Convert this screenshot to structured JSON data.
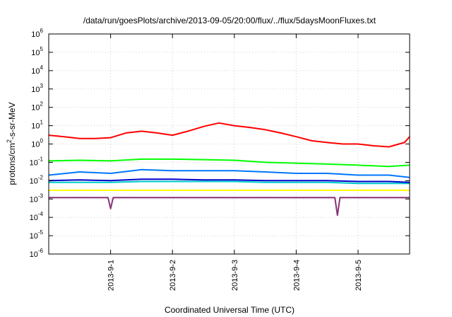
{
  "chart_data": {
    "type": "line",
    "title": "/data/run/goesPlots/archive/2013-09-05/20:00/flux/../flux/5daysMoonFluxes.txt",
    "xlabel": "Coordinated Universal Time (UTC)",
    "ylabel": {
      "base": "protons/cm",
      "sup": "2",
      "rest": "-s-sr-MeV"
    },
    "y_scale": "log",
    "ylim": [
      1e-06,
      1000000.0
    ],
    "y_ticks": [
      {
        "value": 1e-06,
        "base": "10",
        "exp": "-6"
      },
      {
        "value": 1e-05,
        "base": "10",
        "exp": "-5"
      },
      {
        "value": 0.0001,
        "base": "10",
        "exp": "-4"
      },
      {
        "value": 0.001,
        "base": "10",
        "exp": "-3"
      },
      {
        "value": 0.01,
        "base": "10",
        "exp": "-2"
      },
      {
        "value": 0.1,
        "base": "10",
        "exp": "-1"
      },
      {
        "value": 1.0,
        "base": "10",
        "exp": "0"
      },
      {
        "value": 10.0,
        "base": "10",
        "exp": "1"
      },
      {
        "value": 100.0,
        "base": "10",
        "exp": "2"
      },
      {
        "value": 1000.0,
        "base": "10",
        "exp": "3"
      },
      {
        "value": 10000.0,
        "base": "10",
        "exp": "4"
      },
      {
        "value": 100000.0,
        "base": "10",
        "exp": "5"
      },
      {
        "value": 1000000.0,
        "base": "10",
        "exp": "6"
      }
    ],
    "xlim": [
      "2013-08-31 00:00",
      "2013-09-05 20:00"
    ],
    "x_ticks": [
      "2013-9-1",
      "2013-9-2",
      "2013-9-3",
      "2013-9-4",
      "2013-9-5"
    ],
    "grid": true,
    "series": [
      {
        "color": "#ff0000",
        "x": [
          "2013-08-31 00:00",
          "2013-08-31 06:00",
          "2013-08-31 12:00",
          "2013-08-31 18:00",
          "2013-09-01 00:00",
          "2013-09-01 06:00",
          "2013-09-01 12:00",
          "2013-09-01 18:00",
          "2013-09-02 00:00",
          "2013-09-02 06:00",
          "2013-09-02 12:00",
          "2013-09-02 18:00",
          "2013-09-03 00:00",
          "2013-09-03 06:00",
          "2013-09-03 12:00",
          "2013-09-03 18:00",
          "2013-09-04 00:00",
          "2013-09-04 06:00",
          "2013-09-04 12:00",
          "2013-09-04 18:00",
          "2013-09-05 00:00",
          "2013-09-05 06:00",
          "2013-09-05 12:00",
          "2013-09-05 18:00",
          "2013-09-05 20:00"
        ],
        "values": [
          3,
          2.5,
          2,
          2,
          2.2,
          4,
          5,
          4,
          3,
          5,
          9,
          14,
          10,
          8,
          6,
          4,
          2.5,
          1.5,
          1.2,
          1,
          1,
          0.8,
          0.7,
          1.2,
          2.5
        ]
      },
      {
        "color": "#00ff00",
        "x": [
          "2013-08-31 00:00",
          "2013-08-31 12:00",
          "2013-09-01 00:00",
          "2013-09-01 12:00",
          "2013-09-02 00:00",
          "2013-09-02 12:00",
          "2013-09-03 00:00",
          "2013-09-03 12:00",
          "2013-09-04 00:00",
          "2013-09-04 12:00",
          "2013-09-05 00:00",
          "2013-09-05 12:00",
          "2013-09-05 20:00"
        ],
        "values": [
          0.12,
          0.13,
          0.12,
          0.15,
          0.15,
          0.14,
          0.13,
          0.1,
          0.09,
          0.08,
          0.07,
          0.06,
          0.07
        ]
      },
      {
        "color": "#0077ff",
        "x": [
          "2013-08-31 00:00",
          "2013-08-31 12:00",
          "2013-09-01 00:00",
          "2013-09-01 12:00",
          "2013-09-02 00:00",
          "2013-09-02 12:00",
          "2013-09-03 00:00",
          "2013-09-03 12:00",
          "2013-09-04 00:00",
          "2013-09-04 12:00",
          "2013-09-05 00:00",
          "2013-09-05 12:00",
          "2013-09-05 20:00"
        ],
        "values": [
          0.02,
          0.03,
          0.025,
          0.04,
          0.035,
          0.035,
          0.035,
          0.03,
          0.025,
          0.025,
          0.02,
          0.02,
          0.015
        ]
      },
      {
        "color": "#00cccc",
        "x": [
          "2013-08-31 00:00",
          "2013-08-31 12:00",
          "2013-09-01 00:00",
          "2013-09-01 12:00",
          "2013-09-02 00:00",
          "2013-09-02 12:00",
          "2013-09-03 00:00",
          "2013-09-03 12:00",
          "2013-09-04 00:00",
          "2013-09-04 12:00",
          "2013-09-05 00:00",
          "2013-09-05 12:00",
          "2013-09-05 20:00"
        ],
        "values": [
          0.008,
          0.008,
          0.008,
          0.009,
          0.009,
          0.009,
          0.009,
          0.008,
          0.008,
          0.008,
          0.007,
          0.007,
          0.007
        ]
      },
      {
        "color": "#0000cc",
        "x": [
          "2013-08-31 00:00",
          "2013-08-31 12:00",
          "2013-09-01 00:00",
          "2013-09-01 12:00",
          "2013-09-02 00:00",
          "2013-09-02 12:00",
          "2013-09-03 00:00",
          "2013-09-03 12:00",
          "2013-09-04 00:00",
          "2013-09-04 12:00",
          "2013-09-05 00:00",
          "2013-09-05 12:00",
          "2013-09-05 20:00"
        ],
        "values": [
          0.01,
          0.011,
          0.01,
          0.012,
          0.012,
          0.011,
          0.011,
          0.01,
          0.01,
          0.01,
          0.009,
          0.009,
          0.008
        ]
      },
      {
        "color": "#ffff00",
        "x": [
          "2013-08-31 00:00",
          "2013-08-31 12:00",
          "2013-09-01 00:00",
          "2013-09-01 12:00",
          "2013-09-02 00:00",
          "2013-09-02 12:00",
          "2013-09-03 00:00",
          "2013-09-03 12:00",
          "2013-09-04 00:00",
          "2013-09-04 12:00",
          "2013-09-05 00:00",
          "2013-09-05 12:00",
          "2013-09-05 20:00"
        ],
        "values": [
          0.003,
          0.003,
          0.003,
          0.003,
          0.003,
          0.003,
          0.003,
          0.003,
          0.003,
          0.003,
          0.003,
          0.003,
          0.003
        ]
      },
      {
        "color": "#883377",
        "x": [
          "2013-08-31 00:00",
          "2013-08-31 12:00",
          "2013-08-31 23:00",
          "2013-09-01 00:00",
          "2013-09-01 01:00",
          "2013-09-01 12:00",
          "2013-09-02 00:00",
          "2013-09-02 12:00",
          "2013-09-03 00:00",
          "2013-09-03 12:00",
          "2013-09-04 00:00",
          "2013-09-04 12:00",
          "2013-09-04 15:00",
          "2013-09-04 16:00",
          "2013-09-04 17:00",
          "2013-09-05 00:00",
          "2013-09-05 12:00",
          "2013-09-05 20:00"
        ],
        "values": [
          0.0012,
          0.0012,
          0.0012,
          0.0003,
          0.0012,
          0.0012,
          0.0012,
          0.0012,
          0.0012,
          0.0012,
          0.0012,
          0.0012,
          0.0012,
          0.00013,
          0.0012,
          0.0012,
          0.0012,
          0.0012
        ]
      }
    ]
  }
}
